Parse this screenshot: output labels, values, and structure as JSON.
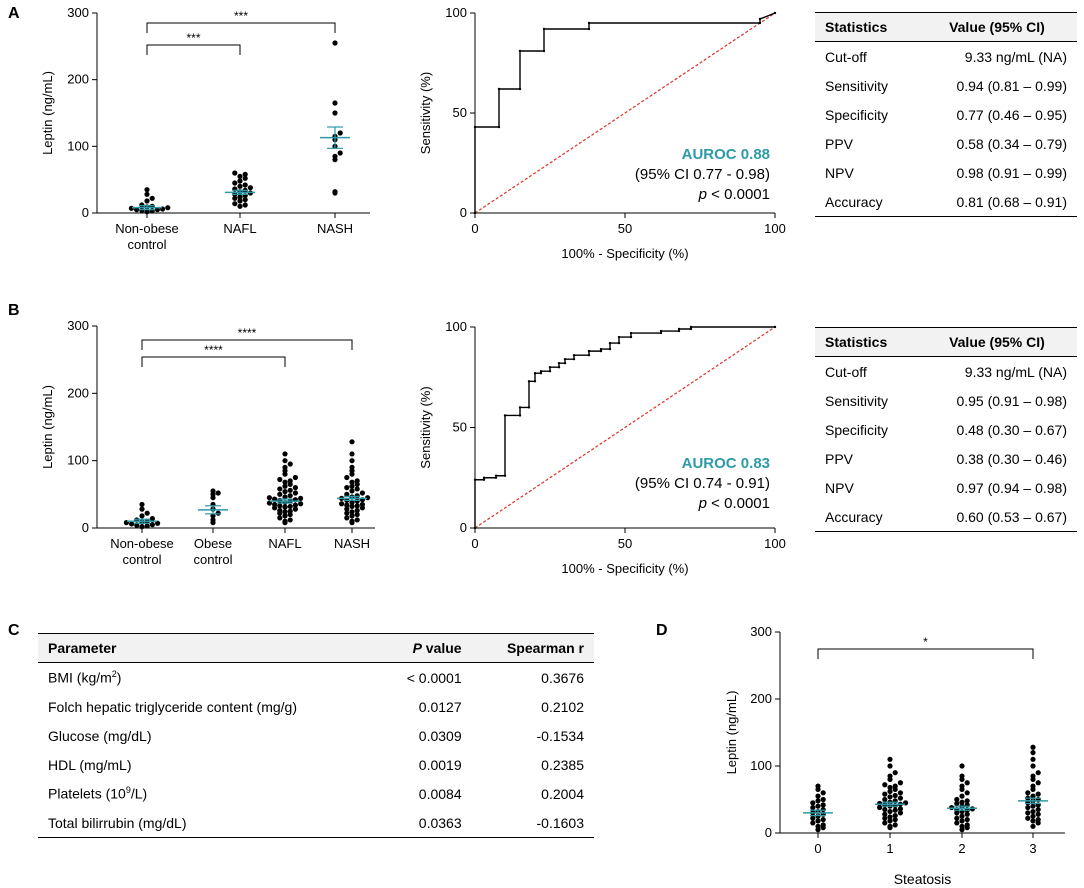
{
  "panels": {
    "a": "A",
    "b": "B",
    "c": "C",
    "d": "D"
  },
  "chart_data": [
    {
      "id": "A-scatter",
      "type": "scatter",
      "ylabel": "Leptin (ng/mL)",
      "ylim": [
        0,
        300
      ],
      "yticks": [
        0,
        100,
        200,
        300
      ],
      "categories": [
        [
          "Non-obese",
          "control"
        ],
        [
          "NAFL"
        ],
        [
          "NASH"
        ]
      ],
      "means": [
        8,
        31,
        113
      ],
      "sem": [
        3,
        3,
        16
      ],
      "series": [
        {
          "name": "Non-obese control",
          "values": [
            2,
            3,
            4,
            5,
            5,
            6,
            7,
            8,
            9,
            10,
            12,
            18,
            22,
            28,
            35
          ]
        },
        {
          "name": "NAFL",
          "values": [
            10,
            12,
            14,
            18,
            20,
            22,
            24,
            26,
            28,
            30,
            32,
            34,
            36,
            38,
            40,
            42,
            45,
            48,
            52,
            55,
            58,
            60
          ]
        },
        {
          "name": "NASH",
          "values": [
            30,
            32,
            80,
            85,
            90,
            100,
            110,
            115,
            120,
            150,
            165,
            255
          ]
        }
      ],
      "brackets": [
        {
          "from": 0,
          "to": 1,
          "label": "***"
        },
        {
          "from": 0,
          "to": 2,
          "label": "***"
        }
      ]
    },
    {
      "id": "A-roc",
      "type": "line",
      "xlabel": "100% - Specificity (%)",
      "ylabel": "Sensitivity (%)",
      "xlim": [
        0,
        100
      ],
      "ylim": [
        0,
        100
      ],
      "ticks": [
        0,
        50,
        100
      ],
      "roc": [
        [
          0,
          0
        ],
        [
          0,
          43
        ],
        [
          8,
          43
        ],
        [
          8,
          62
        ],
        [
          15,
          62
        ],
        [
          15,
          81
        ],
        [
          23,
          81
        ],
        [
          23,
          92
        ],
        [
          38,
          92
        ],
        [
          38,
          95
        ],
        [
          95,
          95
        ],
        [
          95,
          97
        ],
        [
          100,
          100
        ]
      ],
      "auroc_label": "AUROC 0.88",
      "ci_label": "(95% CI 0.77 - 0.98)",
      "p_label": "p",
      "p_value": " < 0.0001"
    },
    {
      "id": "B-scatter",
      "type": "scatter",
      "ylabel": "Leptin (ng/mL)",
      "ylim": [
        0,
        300
      ],
      "yticks": [
        0,
        100,
        200,
        300
      ],
      "categories": [
        [
          "Non-obese",
          "control"
        ],
        [
          "Obese",
          "control"
        ],
        [
          "NAFL"
        ],
        [
          "NASH"
        ]
      ],
      "means": [
        10,
        27,
        40,
        44
      ],
      "sem": [
        3,
        6,
        3,
        3
      ],
      "series": [
        {
          "name": "Non-obese control",
          "values": [
            2,
            3,
            4,
            5,
            6,
            7,
            8,
            9,
            10,
            12,
            14,
            18,
            22,
            28,
            35
          ]
        },
        {
          "name": "Obese control",
          "values": [
            8,
            12,
            18,
            22,
            28,
            35,
            45,
            50,
            52,
            55
          ]
        },
        {
          "name": "NAFL",
          "values": [
            8,
            10,
            12,
            15,
            18,
            20,
            22,
            24,
            25,
            26,
            28,
            30,
            31,
            32,
            33,
            34,
            35,
            36,
            37,
            38,
            40,
            41,
            42,
            43,
            44,
            45,
            46,
            48,
            50,
            52,
            54,
            56,
            58,
            60,
            62,
            65,
            68,
            70,
            72,
            75,
            80,
            85,
            90,
            95,
            100,
            110
          ]
        },
        {
          "name": "NASH",
          "values": [
            8,
            10,
            12,
            15,
            18,
            20,
            22,
            24,
            26,
            28,
            30,
            32,
            33,
            34,
            35,
            36,
            38,
            40,
            41,
            42,
            44,
            45,
            46,
            48,
            50,
            52,
            55,
            58,
            60,
            62,
            65,
            68,
            70,
            75,
            80,
            85,
            90,
            100,
            110,
            128
          ]
        }
      ],
      "brackets": [
        {
          "from": 0,
          "to": 2,
          "label": "****"
        },
        {
          "from": 0,
          "to": 3,
          "label": "****"
        }
      ]
    },
    {
      "id": "B-roc",
      "type": "line",
      "xlabel": "100% - Specificity (%)",
      "ylabel": "Sensitivity (%)",
      "xlim": [
        0,
        100
      ],
      "ylim": [
        0,
        100
      ],
      "ticks": [
        0,
        50,
        100
      ],
      "roc": [
        [
          0,
          0
        ],
        [
          0,
          24
        ],
        [
          3,
          24
        ],
        [
          3,
          25
        ],
        [
          7,
          25
        ],
        [
          7,
          26
        ],
        [
          10,
          26
        ],
        [
          10,
          56
        ],
        [
          15,
          56
        ],
        [
          15,
          60
        ],
        [
          18,
          60
        ],
        [
          18,
          73
        ],
        [
          20,
          73
        ],
        [
          20,
          77
        ],
        [
          22,
          77
        ],
        [
          22,
          78
        ],
        [
          25,
          78
        ],
        [
          25,
          80
        ],
        [
          28,
          80
        ],
        [
          28,
          82
        ],
        [
          30,
          82
        ],
        [
          30,
          84
        ],
        [
          33,
          84
        ],
        [
          33,
          86
        ],
        [
          38,
          86
        ],
        [
          38,
          88
        ],
        [
          42,
          88
        ],
        [
          42,
          89
        ],
        [
          45,
          89
        ],
        [
          45,
          92
        ],
        [
          48,
          92
        ],
        [
          48,
          95
        ],
        [
          52,
          95
        ],
        [
          52,
          97
        ],
        [
          62,
          97
        ],
        [
          62,
          98
        ],
        [
          68,
          98
        ],
        [
          68,
          99
        ],
        [
          72,
          99
        ],
        [
          72,
          100
        ],
        [
          100,
          100
        ]
      ],
      "auroc_label": "AUROC 0.83",
      "ci_label": "(95% CI 0.74 - 0.91)",
      "p_label": "p",
      "p_value": " < 0.0001"
    },
    {
      "id": "D-scatter",
      "type": "scatter",
      "xlabel": "Steatosis",
      "ylabel": "Leptin (ng/mL)",
      "ylim": [
        0,
        300
      ],
      "yticks": [
        0,
        100,
        200,
        300
      ],
      "categories": [
        [
          "0"
        ],
        [
          "1"
        ],
        [
          "2"
        ],
        [
          "3"
        ]
      ],
      "means": [
        30,
        43,
        37,
        48
      ],
      "sem": [
        4,
        3,
        3,
        4
      ],
      "series": [
        {
          "name": "0",
          "values": [
            5,
            8,
            10,
            12,
            15,
            18,
            20,
            22,
            25,
            28,
            30,
            32,
            35,
            38,
            40,
            42,
            45,
            48,
            50,
            55,
            60,
            65,
            70
          ]
        },
        {
          "name": "1",
          "values": [
            8,
            10,
            12,
            15,
            18,
            20,
            22,
            24,
            26,
            28,
            30,
            32,
            34,
            35,
            36,
            38,
            40,
            41,
            42,
            43,
            44,
            45,
            46,
            48,
            50,
            52,
            54,
            56,
            58,
            60,
            62,
            65,
            68,
            70,
            72,
            75,
            80,
            85,
            90,
            100,
            110
          ]
        },
        {
          "name": "2",
          "values": [
            5,
            8,
            10,
            12,
            15,
            18,
            20,
            22,
            25,
            28,
            30,
            32,
            34,
            35,
            36,
            38,
            40,
            42,
            44,
            46,
            48,
            50,
            55,
            60,
            65,
            70,
            75,
            80,
            85,
            100
          ]
        },
        {
          "name": "3",
          "values": [
            10,
            15,
            18,
            20,
            22,
            25,
            28,
            30,
            32,
            35,
            38,
            40,
            42,
            45,
            48,
            50,
            52,
            55,
            58,
            60,
            65,
            70,
            75,
            80,
            85,
            90,
            100,
            110,
            120,
            128
          ]
        }
      ],
      "brackets": [
        {
          "from": 0,
          "to": 3,
          "label": "*"
        }
      ]
    }
  ],
  "tableA": {
    "headers": [
      "Statistics",
      "Value (95% CI)"
    ],
    "rows": [
      [
        "Cut-off",
        "9.33 ng/mL (NA)"
      ],
      [
        "Sensitivity",
        "0.94 (0.81 – 0.99)"
      ],
      [
        "Specificity",
        "0.77 (0.46 – 0.95)"
      ],
      [
        "PPV",
        "0.58 (0.34 – 0.79)"
      ],
      [
        "NPV",
        "0.98 (0.91 – 0.99)"
      ],
      [
        "Accuracy",
        "0.81 (0.68 – 0.91)"
      ]
    ]
  },
  "tableB": {
    "headers": [
      "Statistics",
      "Value (95% CI)"
    ],
    "rows": [
      [
        "Cut-off",
        "9.33 ng/mL (NA)"
      ],
      [
        "Sensitivity",
        "0.95 (0.91 – 0.98)"
      ],
      [
        "Specificity",
        "0.48 (0.30 – 0.67)"
      ],
      [
        "PPV",
        "0.38 (0.30 – 0.46)"
      ],
      [
        "NPV",
        "0.97 (0.94 – 0.98)"
      ],
      [
        "Accuracy",
        "0.60 (0.53 – 0.67)"
      ]
    ]
  },
  "tableC": {
    "headers": [
      "Parameter",
      "P",
      " value",
      "Spearman r"
    ],
    "rows": [
      {
        "param": "BMI (kg/m",
        "sup": "2",
        "tail": ")",
        "p": "< 0.0001",
        "r": "0.3676"
      },
      {
        "param": "Folch hepatic triglyceride content (mg/g)",
        "sup": "",
        "tail": "",
        "p": "0.0127",
        "r": "0.2102"
      },
      {
        "param": "Glucose (mg/dL)",
        "sup": "",
        "tail": "",
        "p": "0.0309",
        "r": "-0.1534"
      },
      {
        "param": "HDL (mg/mL)",
        "sup": "",
        "tail": "",
        "p": "0.0019",
        "r": "0.2385"
      },
      {
        "param": "Platelets (10",
        "sup": "9",
        "tail": "/L)",
        "p": "0.0084",
        "r": "0.2004"
      },
      {
        "param": "Total bilirrubin (mg/dL)",
        "sup": "",
        "tail": "",
        "p": "0.0363",
        "r": "-0.1603"
      }
    ]
  },
  "colors": {
    "accent": "#2e9aa8",
    "diagonal": "#e0302a"
  }
}
